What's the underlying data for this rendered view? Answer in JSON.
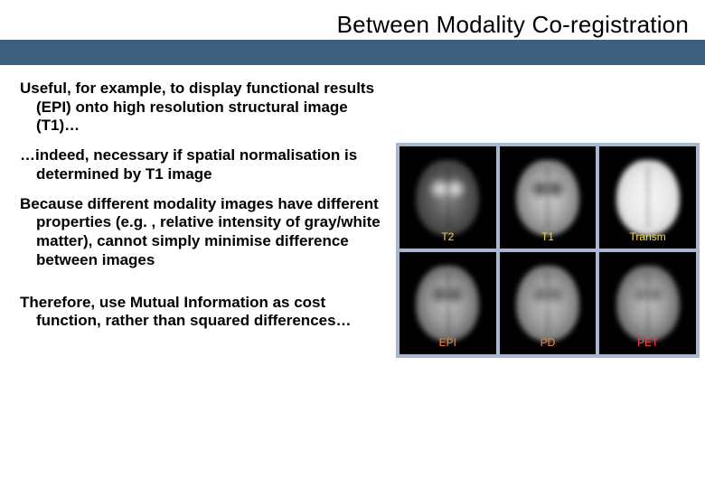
{
  "title": "Between Modality Co-registration",
  "header_band_color": "#3f5f7f",
  "paragraphs": {
    "p1": "Useful, for example, to display functional results (EPI) onto high resolution structural image (T1)…",
    "p2": "…indeed, necessary if spatial normalisation is determined by T1 image",
    "p3": "Because different modality images have different properties (e.g. , relative intensity of gray/white matter), cannot simply minimise difference between images",
    "p4": "Therefore, use Mutual Information as cost function, rather than squared differences…"
  },
  "figure": {
    "background_color": "#a8b8d0",
    "grid": [
      3,
      2
    ],
    "scans": [
      {
        "label": "T2",
        "label_color": "#f5d742",
        "brain_class": "brain-t2"
      },
      {
        "label": "T1",
        "label_color": "#f5d742",
        "brain_class": "brain-t1"
      },
      {
        "label": "Transm",
        "label_color": "#f5d742",
        "brain_class": "brain-transm"
      },
      {
        "label": "EPI",
        "label_color": "#f58742",
        "brain_class": "brain-epi"
      },
      {
        "label": "PD",
        "label_color": "#f58742",
        "brain_class": "brain-pd"
      },
      {
        "label": "PET",
        "label_color": "#e84545",
        "brain_class": "brain-pet"
      }
    ]
  }
}
